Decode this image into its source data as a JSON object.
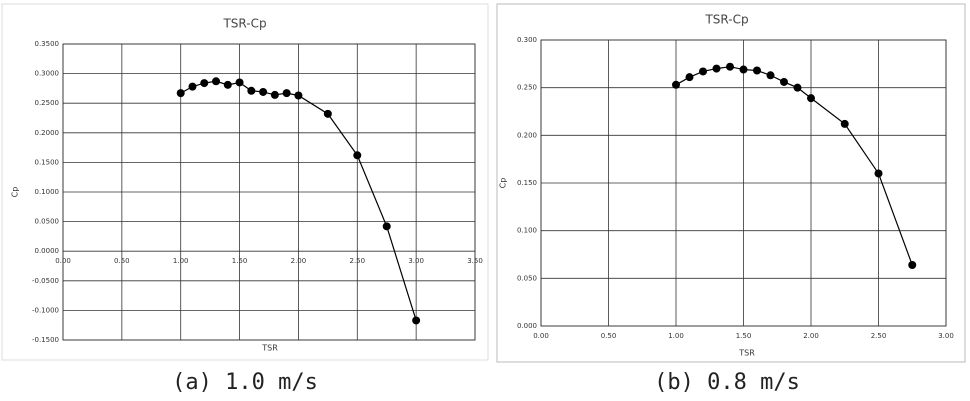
{
  "chart_data": [
    {
      "type": "line",
      "title": "TSR-Cp",
      "xlabel": "TSR",
      "ylabel": "Cp",
      "caption": "(a) 1.0 m/s",
      "color": "#000000",
      "grid": true,
      "x": [
        1.0,
        1.1,
        1.2,
        1.3,
        1.4,
        1.5,
        1.6,
        1.7,
        1.8,
        1.9,
        2.0,
        2.25,
        2.5,
        2.75,
        3.0
      ],
      "values": [
        0.267,
        0.278,
        0.284,
        0.287,
        0.281,
        0.285,
        0.271,
        0.269,
        0.264,
        0.267,
        0.263,
        0.232,
        0.162,
        0.042,
        -0.117
      ],
      "xlim": [
        0,
        3.5
      ],
      "xticks": [
        {
          "value": 0,
          "label": "0.00"
        },
        {
          "value": 0.5,
          "label": "0.50"
        },
        {
          "value": 1,
          "label": "1.00"
        },
        {
          "value": 1.5,
          "label": "1.50"
        },
        {
          "value": 2,
          "label": "2.00"
        },
        {
          "value": 2.5,
          "label": "2.50"
        },
        {
          "value": 3,
          "label": "3.00"
        },
        {
          "value": 3.5,
          "label": "3.50"
        }
      ],
      "ylim": [
        -0.15,
        0.35
      ],
      "yticks": [
        {
          "value": -0.15,
          "label": "-0.1500"
        },
        {
          "value": -0.1,
          "label": "-0.1000"
        },
        {
          "value": -0.05,
          "label": "-0.0500"
        },
        {
          "value": 0,
          "label": "0.0000"
        },
        {
          "value": 0.05,
          "label": "0.0500"
        },
        {
          "value": 0.1,
          "label": "0.1000"
        },
        {
          "value": 0.15,
          "label": "0.1500"
        },
        {
          "value": 0.2,
          "label": "0.2000"
        },
        {
          "value": 0.25,
          "label": "0.2500"
        },
        {
          "value": 0.3,
          "label": "0.3000"
        },
        {
          "value": 0.35,
          "label": "0.3500"
        }
      ]
    },
    {
      "type": "line",
      "title": "TSR-Cp",
      "xlabel": "TSR",
      "ylabel": "Cp",
      "caption": "(b) 0.8 m/s",
      "color": "#000000",
      "grid": true,
      "x": [
        1.0,
        1.1,
        1.2,
        1.3,
        1.4,
        1.5,
        1.6,
        1.7,
        1.8,
        1.9,
        2.0,
        2.25,
        2.5,
        2.75
      ],
      "values": [
        0.253,
        0.261,
        0.267,
        0.27,
        0.272,
        0.269,
        0.268,
        0.263,
        0.256,
        0.25,
        0.239,
        0.212,
        0.16,
        0.064
      ],
      "xlim": [
        0,
        3
      ],
      "xticks": [
        {
          "value": 0,
          "label": "0.00"
        },
        {
          "value": 0.5,
          "label": "0.50"
        },
        {
          "value": 1,
          "label": "1.00"
        },
        {
          "value": 1.5,
          "label": "1.50"
        },
        {
          "value": 2,
          "label": "2.00"
        },
        {
          "value": 2.5,
          "label": "2.50"
        },
        {
          "value": 3,
          "label": "3.00"
        }
      ],
      "ylim": [
        0,
        0.3
      ],
      "yticks": [
        {
          "value": 0,
          "label": "0.000"
        },
        {
          "value": 0.05,
          "label": "0.050"
        },
        {
          "value": 0.1,
          "label": "0.100"
        },
        {
          "value": 0.15,
          "label": "0.150"
        },
        {
          "value": 0.2,
          "label": "0.200"
        },
        {
          "value": 0.25,
          "label": "0.250"
        },
        {
          "value": 0.3,
          "label": "0.300"
        }
      ]
    }
  ]
}
